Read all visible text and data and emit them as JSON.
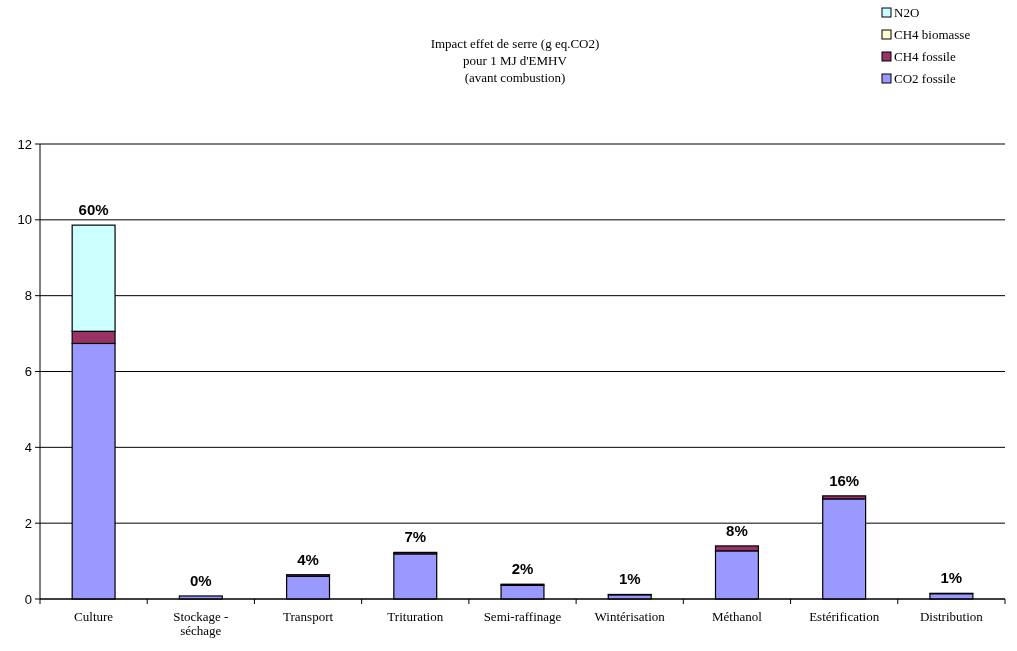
{
  "chart_data": {
    "type": "bar",
    "title": "Impact effet de serre (g eq.CO2)\npour 1 MJ d'EMHV\n(avant combustion)",
    "categories": [
      "Culture",
      "Stockage - séchage",
      "Transport",
      "Trituration",
      "Semi-raffinage",
      "Wintérisation",
      "Méthanol",
      "Estérification",
      "Distribution"
    ],
    "series": [
      {
        "name": "CO2 fossile",
        "color": "#9999ff",
        "values": [
          6.74,
          0.08,
          0.6,
          1.19,
          0.36,
          0.11,
          1.27,
          2.64,
          0.14
        ]
      },
      {
        "name": "CH4 fossile",
        "color": "#993366",
        "values": [
          0.32,
          null,
          0.04,
          0.04,
          0.03,
          0.01,
          0.13,
          0.08,
          0.01
        ]
      },
      {
        "name": "CH4 biomasse",
        "color": "#ffffcc",
        "values": [
          0,
          0,
          0,
          0,
          0,
          0,
          0,
          0,
          0
        ]
      },
      {
        "name": "N2O",
        "color": "#ccffff",
        "values": [
          2.8,
          0,
          0,
          0,
          0,
          0,
          0,
          0,
          0
        ]
      }
    ],
    "stacked": true,
    "ylim": [
      0,
      12
    ],
    "yticks": [
      0,
      2,
      4,
      6,
      8,
      10,
      12
    ],
    "grid": "y",
    "legend": "top right",
    "annotations": [
      {
        "text": "60%",
        "x": "Culture",
        "y": 9.86
      },
      {
        "text": "0%",
        "x": "Stockage - séchage",
        "y": 0.08
      },
      {
        "text": "4%",
        "x": "Transport",
        "y": 0.64
      },
      {
        "text": "7%",
        "x": "Trituration",
        "y": 1.23
      },
      {
        "text": "2%",
        "x": "Semi-raffinage",
        "y": 0.39
      },
      {
        "text": "1%",
        "x": "Wintérisation",
        "y": 0.12
      },
      {
        "text": "8%",
        "x": "Méthanol",
        "y": 1.4
      },
      {
        "text": "16%",
        "x": "Estérification",
        "y": 2.72
      },
      {
        "text": "1%",
        "x": "Distribution",
        "y": 0.15
      }
    ]
  }
}
